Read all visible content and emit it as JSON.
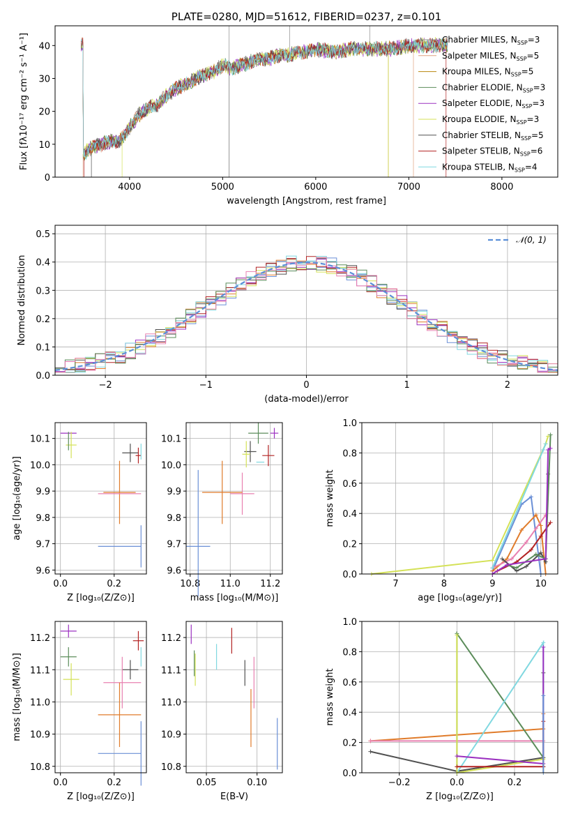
{
  "colors": {
    "chabrier_miles": "#8c8c8c",
    "salpeter_miles": "#e0a080",
    "kroupa_miles": "#b8860b",
    "chabrier_elodie": "#5b8c5a",
    "salpeter_elodie": "#9b30c0",
    "kroupa_elodie": "#d4e157",
    "chabrier_stelib": "#505050",
    "salpeter_stelib": "#b22222",
    "kroupa_stelib": "#80d8e0",
    "blue": "#6a8fd6",
    "orange": "#e07b2a",
    "pink": "#e880b0",
    "green": "#5b8c5a",
    "gauss": "#5b8fd8"
  },
  "chart_data": [
    {
      "type": "line",
      "title": "PLATE=0280, MJD=51612, FIBERID=0237, z=0.101",
      "xlabel": "wavelength [Angstrom, rest frame]",
      "ylabel_html": "Flux [fλ10⁻¹⁷ erg cm⁻² s⁻¹ A⁻¹]",
      "xlim": [
        3200,
        8600
      ],
      "ylim": [
        0,
        46
      ],
      "xticks": [
        4000,
        5000,
        6000,
        7000,
        8000
      ],
      "yticks": [
        0,
        10,
        20,
        30,
        40
      ],
      "legend_loc": "upper right",
      "spectrum_shape": [
        [
          3500,
          7
        ],
        [
          3600,
          9
        ],
        [
          3700,
          10
        ],
        [
          3800,
          11
        ],
        [
          3900,
          11
        ],
        [
          4000,
          15
        ],
        [
          4100,
          19
        ],
        [
          4200,
          21
        ],
        [
          4300,
          22
        ],
        [
          4400,
          25
        ],
        [
          4500,
          27
        ],
        [
          4600,
          28
        ],
        [
          4700,
          30
        ],
        [
          4800,
          31
        ],
        [
          4900,
          32
        ],
        [
          5000,
          34
        ],
        [
          5100,
          33
        ],
        [
          5200,
          34
        ],
        [
          5300,
          35
        ],
        [
          5400,
          36
        ],
        [
          5500,
          36
        ],
        [
          5600,
          37
        ],
        [
          5700,
          37
        ],
        [
          5800,
          38
        ],
        [
          5900,
          38
        ],
        [
          6000,
          39
        ],
        [
          6200,
          38
        ],
        [
          6400,
          39
        ],
        [
          6600,
          39
        ],
        [
          6800,
          39
        ],
        [
          7000,
          40
        ],
        [
          7200,
          40
        ],
        [
          7400,
          40
        ]
      ],
      "series": [
        {
          "name": "Chabrier MILES, N_SSP=3",
          "label_main": "Chabrier MILES, N",
          "label_sub": "SSP",
          "label_tail": "=3",
          "color_key": "chabrier_miles"
        },
        {
          "name": "Salpeter MILES, N_SSP=5",
          "label_main": "Salpeter MILES, N",
          "label_sub": "SSP",
          "label_tail": "=5",
          "color_key": "salpeter_miles"
        },
        {
          "name": "Kroupa MILES, N_SSP=5",
          "label_main": "Kroupa MILES, N",
          "label_sub": "SSP",
          "label_tail": "=5",
          "color_key": "kroupa_miles"
        },
        {
          "name": "Chabrier ELODIE, N_SSP=3",
          "label_main": "Chabrier ELODIE, N",
          "label_sub": "SSP",
          "label_tail": "=3",
          "color_key": "chabrier_elodie"
        },
        {
          "name": "Salpeter ELODIE, N_SSP=3",
          "label_main": "Salpeter ELODIE, N",
          "label_sub": "SSP",
          "label_tail": "=3",
          "color_key": "salpeter_elodie"
        },
        {
          "name": "Kroupa ELODIE, N_SSP=3",
          "label_main": "Kroupa ELODIE, N",
          "label_sub": "SSP",
          "label_tail": "=3",
          "color_key": "kroupa_elodie"
        },
        {
          "name": "Chabrier STELIB, N_SSP=5",
          "label_main": "Chabrier STELIB, N",
          "label_sub": "SSP",
          "label_tail": "=5",
          "color_key": "chabrier_stelib"
        },
        {
          "name": "Salpeter STELIB, N_SSP=6",
          "label_main": "Salpeter STELIB, N",
          "label_sub": "SSP",
          "label_tail": "=6",
          "color_key": "salpeter_stelib"
        },
        {
          "name": "Kroupa STELIB, N_SSP=4",
          "label_main": "Kroupa STELIB, N",
          "label_sub": "SSP",
          "label_tail": "=4",
          "color_key": "kroupa_stelib"
        }
      ]
    },
    {
      "type": "histogram",
      "xlabel": "(data-model)/error",
      "ylabel": "Normed distribution",
      "xlim": [
        -2.5,
        2.5
      ],
      "ylim": [
        0,
        0.53
      ],
      "xticks": [
        -2,
        -1,
        0,
        1,
        2
      ],
      "xtick_labels": [
        "−2",
        "−1",
        "0",
        "1",
        "2"
      ],
      "yticks": [
        0.0,
        0.1,
        0.2,
        0.3,
        0.4,
        0.5
      ],
      "ytick_labels": [
        "0.0",
        "0.1",
        "0.2",
        "0.3",
        "0.4",
        "0.5"
      ],
      "grid": true,
      "legend": "𝒩(0, 1)",
      "gaussian": {
        "mu": 0,
        "sigma": 1,
        "color_key": "gauss"
      },
      "bin_width": 0.1,
      "bin_start": -2.5,
      "series_colors": [
        "blue",
        "orange",
        "chabrier_stelib",
        "salpeter_elodie",
        "kroupa_elodie",
        "salpeter_stelib",
        "kroupa_stelib",
        "green",
        "pink"
      ]
    },
    {
      "type": "scatter",
      "xlabel": "Z [log₁₀(Z/Z⊙)]",
      "ylabel": "age  [log₁₀(age/yr)]",
      "xlim": [
        -0.02,
        0.32
      ],
      "ylim": [
        9.585,
        10.16
      ],
      "xticks": [
        0.0,
        0.2
      ],
      "xtick_labels": [
        "0.0",
        "0.2"
      ],
      "yticks": [
        9.6,
        9.7,
        9.8,
        9.9,
        10.0,
        10.1
      ],
      "ytick_labels": [
        "9.6",
        "9.7",
        "9.8",
        "9.9",
        "10.0",
        "10.1"
      ],
      "points": [
        {
          "x": 0.03,
          "dx": 0.03,
          "y": 10.12,
          "dy": 0.0,
          "c": "salpeter_elodie"
        },
        {
          "x": 0.04,
          "dx": 0.02,
          "y": 10.075,
          "dy": 0.05,
          "c": "kroupa_elodie"
        },
        {
          "x": 0.03,
          "dx": 0.0,
          "y": 10.09,
          "dy": 0.035,
          "c": "green"
        },
        {
          "x": 0.26,
          "dx": 0.03,
          "y": 10.045,
          "dy": 0.035,
          "c": "chabrier_stelib"
        },
        {
          "x": 0.29,
          "dx": 0.01,
          "y": 10.035,
          "dy": 0.03,
          "c": "salpeter_stelib"
        },
        {
          "x": 0.3,
          "dx": 0.0,
          "y": 10.05,
          "dy": 0.03,
          "c": "kroupa_stelib"
        },
        {
          "x": 0.22,
          "dx": 0.06,
          "y": 9.895,
          "dy": 0.12,
          "c": "orange"
        },
        {
          "x": 0.22,
          "dx": 0.08,
          "y": 9.89,
          "dy": 0.0,
          "c": "pink"
        },
        {
          "x": 0.22,
          "dx": 0.08,
          "y": 9.69,
          "dy": 0.0,
          "c": "blue"
        },
        {
          "x": 0.3,
          "dx": 0.0,
          "y": 9.69,
          "dy": 0.08,
          "c": "blue"
        }
      ]
    },
    {
      "type": "scatter",
      "xlabel": "mass [log₁₀(M/M⊙)]",
      "xlim": [
        10.78,
        11.26
      ],
      "ylim": [
        9.585,
        10.16
      ],
      "xticks": [
        10.8,
        11.0,
        11.2
      ],
      "xtick_labels": [
        "10.8",
        "11.0",
        "11.2"
      ],
      "yticks": [
        9.6,
        9.7,
        9.8,
        9.9,
        10.0,
        10.1
      ],
      "ytick_labels": [
        "9.6",
        "9.7",
        "9.8",
        "9.9",
        "10.0",
        "10.1"
      ],
      "points": [
        {
          "x": 11.22,
          "dx": 0.02,
          "y": 10.12,
          "dy": 0.02,
          "c": "salpeter_elodie"
        },
        {
          "x": 11.14,
          "dx": 0.05,
          "y": 10.12,
          "dy": 0.04,
          "c": "green"
        },
        {
          "x": 11.1,
          "dx": 0.03,
          "y": 10.05,
          "dy": 0.04,
          "c": "chabrier_stelib"
        },
        {
          "x": 11.08,
          "dx": 0.02,
          "y": 10.04,
          "dy": 0.05,
          "c": "kroupa_elodie"
        },
        {
          "x": 11.15,
          "dx": 0.02,
          "y": 10.01,
          "dy": 0.0,
          "c": "kroupa_stelib"
        },
        {
          "x": 11.19,
          "dx": 0.03,
          "y": 10.035,
          "dy": 0.04,
          "c": "salpeter_stelib"
        },
        {
          "x": 11.06,
          "dx": 0.06,
          "y": 9.89,
          "dy": 0.08,
          "c": "pink"
        },
        {
          "x": 10.96,
          "dx": 0.1,
          "y": 9.895,
          "dy": 0.12,
          "c": "orange"
        },
        {
          "x": 10.84,
          "dx": 0.06,
          "y": 9.69,
          "dy": 0.0,
          "c": "blue"
        },
        {
          "x": 10.84,
          "dx": 0.0,
          "y": 9.74,
          "dy": 0.24,
          "c": "blue"
        }
      ]
    },
    {
      "type": "line",
      "xlabel": "age  [log₁₀(age/yr)]",
      "ylabel": "mass weight",
      "xlim": [
        6.3,
        10.35
      ],
      "ylim": [
        0,
        1
      ],
      "xticks": [
        7,
        8,
        9,
        10
      ],
      "xtick_labels": [
        "7",
        "8",
        "9",
        "10"
      ],
      "yticks": [
        0.0,
        0.2,
        0.4,
        0.6,
        0.8,
        1.0
      ],
      "ytick_labels": [
        "0.0",
        "0.2",
        "0.4",
        "0.6",
        "0.8",
        "1.0"
      ],
      "series": [
        {
          "c": "kroupa_elodie",
          "x": [
            6.5,
            9.0,
            10.1,
            10.15
          ],
          "y": [
            0.0,
            0.09,
            0.86,
            0.91
          ]
        },
        {
          "c": "blue",
          "x": [
            9.0,
            9.6,
            9.8,
            10.0
          ],
          "y": [
            0.02,
            0.46,
            0.51,
            0.0
          ]
        },
        {
          "c": "orange",
          "x": [
            9.0,
            9.3,
            9.6,
            9.9,
            10.0,
            10.1
          ],
          "y": [
            0.02,
            0.1,
            0.29,
            0.39,
            0.32,
            0.0
          ]
        },
        {
          "c": "pink",
          "x": [
            9.0,
            9.4,
            9.7,
            9.9,
            10.1
          ],
          "y": [
            0.04,
            0.1,
            0.21,
            0.3,
            0.39
          ]
        },
        {
          "c": "salpeter_stelib",
          "x": [
            9.1,
            9.5,
            9.8,
            10.0,
            10.2
          ],
          "y": [
            0.02,
            0.08,
            0.16,
            0.25,
            0.34
          ]
        },
        {
          "c": "chabrier_stelib",
          "x": [
            9.2,
            9.5,
            9.7,
            10.0,
            10.1,
            10.15
          ],
          "y": [
            0.1,
            0.02,
            0.05,
            0.14,
            0.08,
            0.66
          ]
        },
        {
          "c": "green",
          "x": [
            9.3,
            9.5,
            9.9,
            10.1,
            10.2
          ],
          "y": [
            0.06,
            0.04,
            0.13,
            0.1,
            0.92
          ]
        },
        {
          "c": "salpeter_elodie",
          "x": [
            9.0,
            9.3,
            10.1,
            10.15,
            10.2
          ],
          "y": [
            0.0,
            0.06,
            0.1,
            0.82,
            0.83
          ]
        },
        {
          "c": "kroupa_stelib",
          "x": [
            9.0,
            10.05,
            10.1
          ],
          "y": [
            0.04,
            0.82,
            0.86
          ]
        }
      ]
    },
    {
      "type": "scatter",
      "xlabel": "Z [log₁₀(Z/Z⊙)]",
      "ylabel": "mass [log₁₀(M/M⊙)]",
      "xlim": [
        -0.02,
        0.32
      ],
      "ylim": [
        10.78,
        11.25
      ],
      "xticks": [
        0.0,
        0.2
      ],
      "xtick_labels": [
        "0.0",
        "0.2"
      ],
      "yticks": [
        10.8,
        10.9,
        11.0,
        11.1,
        11.2
      ],
      "ytick_labels": [
        "10.8",
        "10.9",
        "11.0",
        "11.1",
        "11.2"
      ],
      "points": [
        {
          "x": 0.03,
          "dx": 0.03,
          "y": 11.22,
          "dy": 0.02,
          "c": "salpeter_elodie"
        },
        {
          "x": 0.03,
          "dx": 0.03,
          "y": 11.14,
          "dy": 0.03,
          "c": "green"
        },
        {
          "x": 0.04,
          "dx": 0.03,
          "y": 11.07,
          "dy": 0.05,
          "c": "kroupa_elodie"
        },
        {
          "x": 0.26,
          "dx": 0.03,
          "y": 11.1,
          "dy": 0.03,
          "c": "chabrier_stelib"
        },
        {
          "x": 0.3,
          "dx": 0.0,
          "y": 11.14,
          "dy": 0.03,
          "c": "kroupa_stelib"
        },
        {
          "x": 0.29,
          "dx": 0.02,
          "y": 11.19,
          "dy": 0.03,
          "c": "salpeter_stelib"
        },
        {
          "x": 0.23,
          "dx": 0.07,
          "y": 11.06,
          "dy": 0.08,
          "c": "pink"
        },
        {
          "x": 0.22,
          "dx": 0.08,
          "y": 10.96,
          "dy": 0.1,
          "c": "orange"
        },
        {
          "x": 0.22,
          "dx": 0.08,
          "y": 10.84,
          "dy": 0.0,
          "c": "blue"
        },
        {
          "x": 0.3,
          "dx": 0.0,
          "y": 10.84,
          "dy": 0.1,
          "c": "blue"
        }
      ]
    },
    {
      "type": "scatter",
      "xlabel": "E(B-V)",
      "xlim": [
        0.03,
        0.125
      ],
      "ylim": [
        10.78,
        11.25
      ],
      "xticks": [
        0.05,
        0.1
      ],
      "xtick_labels": [
        "0.05",
        "0.10"
      ],
      "yticks": [
        10.8,
        10.9,
        11.0,
        11.1,
        11.2
      ],
      "ytick_labels": [
        "10.8",
        "10.9",
        "11.0",
        "11.1",
        "11.2"
      ],
      "points": [
        {
          "x": 0.035,
          "dx": 0.0,
          "y": 11.21,
          "dy": 0.03,
          "c": "salpeter_elodie"
        },
        {
          "x": 0.038,
          "dx": 0.0,
          "y": 11.12,
          "dy": 0.04,
          "c": "green"
        },
        {
          "x": 0.039,
          "dx": 0.0,
          "y": 11.1,
          "dy": 0.05,
          "c": "kroupa_elodie"
        },
        {
          "x": 0.06,
          "dx": 0.0,
          "y": 11.14,
          "dy": 0.04,
          "c": "kroupa_stelib"
        },
        {
          "x": 0.075,
          "dx": 0.0,
          "y": 11.19,
          "dy": 0.04,
          "c": "salpeter_stelib"
        },
        {
          "x": 0.088,
          "dx": 0.0,
          "y": 11.09,
          "dy": 0.04,
          "c": "chabrier_stelib"
        },
        {
          "x": 0.097,
          "dx": 0.0,
          "y": 11.06,
          "dy": 0.08,
          "c": "pink"
        },
        {
          "x": 0.094,
          "dx": 0.0,
          "y": 10.95,
          "dy": 0.09,
          "c": "orange"
        },
        {
          "x": 0.12,
          "dx": 0.0,
          "y": 10.87,
          "dy": 0.08,
          "c": "blue"
        }
      ]
    },
    {
      "type": "line",
      "xlabel": "Z [log₁₀(Z/Z⊙)]",
      "ylabel": "mass weight",
      "xlim": [
        -0.33,
        0.35
      ],
      "ylim": [
        0,
        1
      ],
      "xticks": [
        -0.2,
        0.0,
        0.2
      ],
      "xtick_labels": [
        "−0.2",
        "0.0",
        "0.2"
      ],
      "yticks": [
        0.0,
        0.2,
        0.4,
        0.6,
        0.8,
        1.0
      ],
      "ytick_labels": [
        "0.0",
        "0.2",
        "0.4",
        "0.6",
        "0.8",
        "1.0"
      ],
      "series": [
        {
          "c": "orange",
          "x": [
            -0.3,
            0.3,
            0.3
          ],
          "y": [
            0.21,
            0.29,
            0.39
          ]
        },
        {
          "c": "pink",
          "x": [
            -0.3,
            0.3
          ],
          "y": [
            0.21,
            0.21
          ]
        },
        {
          "c": "chabrier_stelib",
          "x": [
            -0.3,
            0.0,
            0.3,
            0.3
          ],
          "y": [
            0.14,
            0.01,
            0.1,
            0.66
          ]
        },
        {
          "c": "green",
          "x": [
            0.0,
            0.0,
            0.3,
            0.3
          ],
          "y": [
            0.04,
            0.92,
            0.1,
            0.04
          ]
        },
        {
          "c": "kroupa_stelib",
          "x": [
            0.0,
            0.3,
            0.3
          ],
          "y": [
            0.0,
            0.86,
            0.04
          ]
        },
        {
          "c": "kroupa_elodie",
          "x": [
            0.0,
            0.0,
            0.3,
            0.3
          ],
          "y": [
            0.91,
            0.0,
            0.09,
            0.0
          ]
        },
        {
          "c": "salpeter_elodie",
          "x": [
            0.0,
            0.3,
            0.3
          ],
          "y": [
            0.11,
            0.06,
            0.83
          ]
        },
        {
          "c": "salpeter_stelib",
          "x": [
            0.0,
            0.3,
            0.3
          ],
          "y": [
            0.04,
            0.04,
            0.34
          ]
        },
        {
          "c": "blue",
          "x": [
            0.3,
            0.3
          ],
          "y": [
            0.0,
            0.51
          ]
        }
      ]
    }
  ]
}
